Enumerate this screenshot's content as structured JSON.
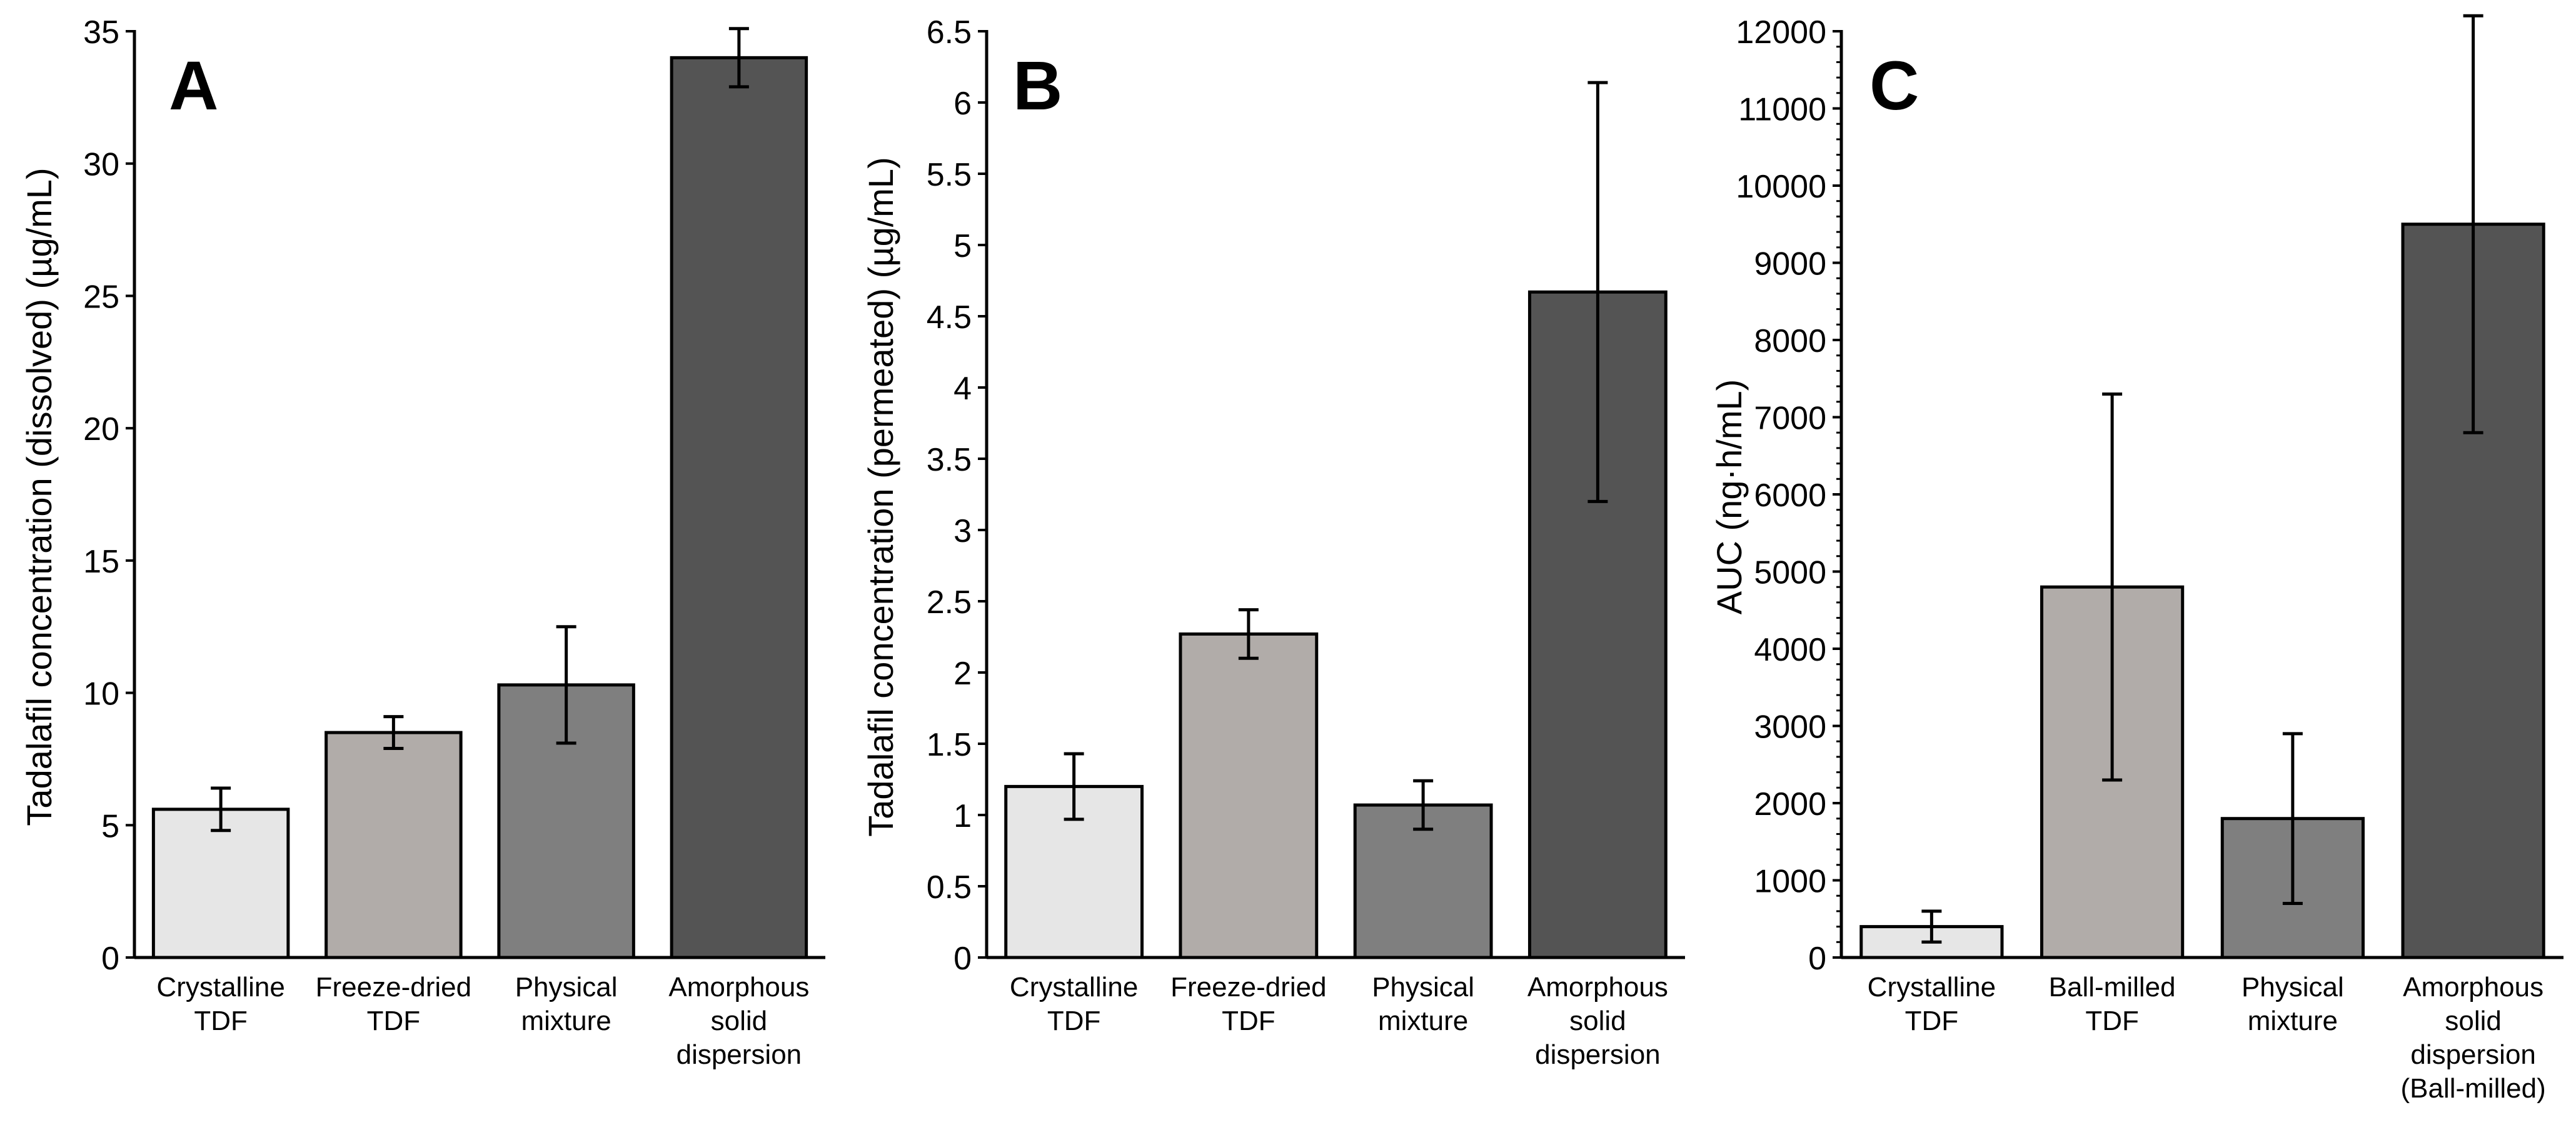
{
  "colors": {
    "bar1": "#e6e6e6",
    "bar2": "#b1aca9",
    "bar3": "#7f7f7f",
    "bar4": "#545454",
    "stroke": "#000000"
  },
  "chart_data": [
    {
      "type": "bar",
      "panel_label": "A",
      "title": "",
      "xlabel": "",
      "ylabel": "Tadalafil concentration (dissolved) (µg/mL)",
      "ylim": [
        0,
        35
      ],
      "yticks": [
        0,
        5,
        10,
        15,
        20,
        25,
        30,
        35
      ],
      "ytick_labels": [
        "0",
        "5",
        "10",
        "15",
        "20",
        "25",
        "30",
        "35"
      ],
      "categories": [
        [
          "Crystalline",
          "TDF"
        ],
        [
          "Freeze-dried",
          "TDF"
        ],
        [
          "Physical",
          "mixture"
        ],
        [
          "Amorphous",
          "solid",
          "dispersion"
        ]
      ],
      "values": [
        5.6,
        8.5,
        10.3,
        34.0
      ],
      "errors": [
        0.8,
        0.6,
        2.2,
        1.1
      ],
      "grid": false,
      "legend": "none"
    },
    {
      "type": "bar",
      "panel_label": "B",
      "title": "",
      "xlabel": "",
      "ylabel": "Tadalafil concentration (permeated) (µg/mL)",
      "ylim": [
        0,
        6.5
      ],
      "yticks": [
        0,
        0.5,
        1,
        1.5,
        2,
        2.5,
        3,
        3.5,
        4,
        4.5,
        5,
        5.5,
        6,
        6.5
      ],
      "ytick_labels": [
        "0",
        "0.5",
        "1",
        "1.5",
        "2",
        "2.5",
        "3",
        "3.5",
        "4",
        "4.5",
        "5",
        "5.5",
        "6",
        "6.5"
      ],
      "categories": [
        [
          "Crystalline",
          "TDF"
        ],
        [
          "Freeze-dried",
          "TDF"
        ],
        [
          "Physical",
          "mixture"
        ],
        [
          "Amorphous",
          "solid",
          "dispersion"
        ]
      ],
      "values": [
        1.2,
        2.27,
        1.07,
        4.67
      ],
      "errors": [
        0.23,
        0.17,
        0.17,
        1.47
      ],
      "grid": false,
      "legend": "none"
    },
    {
      "type": "bar",
      "panel_label": "C",
      "title": "",
      "xlabel": "",
      "ylabel": "AUC (ng·h/mL)",
      "ylim": [
        0,
        12500
      ],
      "yticks": [
        0,
        1000,
        2000,
        3000,
        4000,
        5000,
        6000,
        7000,
        8000,
        9000,
        10000,
        11000,
        12000
      ],
      "ytick_labels": [
        "0",
        "1000",
        "2000",
        "3000",
        "4000",
        "5000",
        "6000",
        "7000",
        "8000",
        "9000",
        "10000",
        "11000",
        "12000"
      ],
      "categories": [
        [
          "Crystalline",
          "TDF"
        ],
        [
          "Ball-milled",
          "TDF"
        ],
        [
          "Physical",
          "mixture"
        ],
        [
          "Amorphous",
          "solid",
          "dispersion",
          "(Ball-milled)"
        ]
      ],
      "values": [
        400,
        4800,
        1800,
        9500
      ],
      "errors": [
        200,
        2500,
        1100,
        2700
      ],
      "grid": false,
      "legend": "none"
    }
  ]
}
